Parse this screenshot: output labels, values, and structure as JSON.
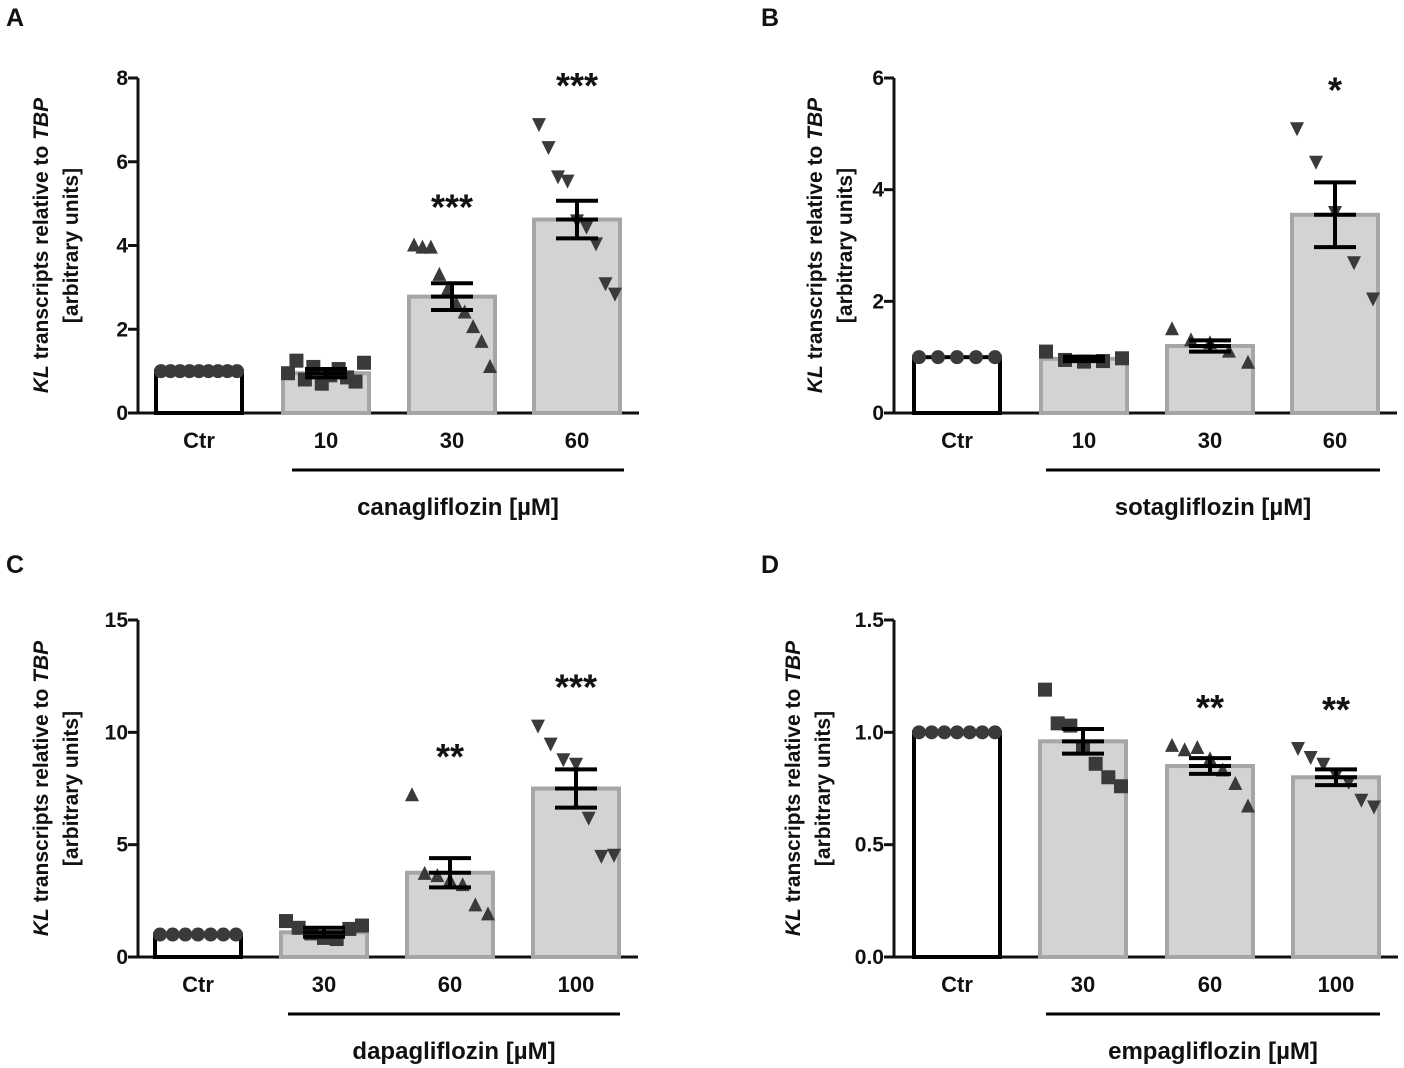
{
  "colors": {
    "bar_fill": "#d3d3d3",
    "bar_edge": "#a6a6a6",
    "control_fill": "#ffffff",
    "control_edge": "#000000",
    "points": "#3a3a3a",
    "axis": "#111111"
  },
  "chart_data": [
    {
      "panel": "A",
      "type": "bar",
      "ylabel_italic_a": "KL",
      "ylabel_mid": " transcripts relative to ",
      "ylabel_italic_b": "TBP",
      "ylabel_line2": "[arbitrary units]",
      "ylim": [
        0,
        8
      ],
      "yticks": [
        0,
        2,
        4,
        6,
        8
      ],
      "ytick_labels": [
        "0",
        "2",
        "4",
        "6",
        "8"
      ],
      "categories": [
        "Ctr",
        "10",
        "30",
        "60"
      ],
      "drug": "canagliflozin [µM]",
      "means": [
        1.0,
        0.95,
        2.78,
        4.62
      ],
      "sem": [
        0.0,
        0.1,
        0.32,
        0.45
      ],
      "markers": [
        "circle",
        "square",
        "triangle-up",
        "triangle-down"
      ],
      "points": [
        [
          1,
          1,
          1,
          1,
          1,
          1,
          1,
          1,
          1
        ],
        [
          0.95,
          1.25,
          0.8,
          1.1,
          0.7,
          0.9,
          1.05,
          0.85,
          0.75,
          1.2
        ],
        [
          4.0,
          3.95,
          3.95,
          3.3,
          2.95,
          2.6,
          2.4,
          2.05,
          1.7,
          1.1
        ],
        [
          6.9,
          6.35,
          5.65,
          5.55,
          4.6,
          4.45,
          4.05,
          3.1,
          2.85
        ]
      ],
      "significance": [
        "",
        "",
        "***",
        "***"
      ]
    },
    {
      "panel": "B",
      "type": "bar",
      "ylabel_italic_a": "KL",
      "ylabel_mid": " transcripts relative to ",
      "ylabel_italic_b": "TBP",
      "ylabel_line2": "[arbitrary units]",
      "ylim": [
        0,
        6
      ],
      "yticks": [
        0,
        2,
        4,
        6
      ],
      "ytick_labels": [
        "0",
        "2",
        "4",
        "6"
      ],
      "categories": [
        "Ctr",
        "10",
        "30",
        "60"
      ],
      "drug": "sotagliflozin [µM]",
      "means": [
        1.0,
        0.97,
        1.2,
        3.55
      ],
      "sem": [
        0.0,
        0.04,
        0.1,
        0.58
      ],
      "markers": [
        "circle",
        "square",
        "triangle-up",
        "triangle-down"
      ],
      "points": [
        [
          1,
          1,
          1,
          1,
          1
        ],
        [
          1.1,
          0.95,
          0.92,
          0.93,
          0.98
        ],
        [
          1.5,
          1.3,
          1.25,
          1.1,
          0.9
        ],
        [
          5.1,
          4.5,
          3.6,
          2.7,
          2.05
        ]
      ],
      "significance": [
        "",
        "",
        "",
        "*"
      ]
    },
    {
      "panel": "C",
      "type": "bar",
      "ylabel_italic_a": "KL",
      "ylabel_mid": " transcripts relative to ",
      "ylabel_italic_b": "TBP",
      "ylabel_line2": "[arbitrary units]",
      "ylim": [
        0,
        15
      ],
      "yticks": [
        0,
        5,
        10,
        15
      ],
      "ytick_labels": [
        "0",
        "5",
        "10",
        "15"
      ],
      "categories": [
        "Ctr",
        "30",
        "60",
        "100"
      ],
      "drug": "dapagliflozin [µM]",
      "means": [
        1.0,
        1.1,
        3.75,
        7.5
      ],
      "sem": [
        0.0,
        0.2,
        0.65,
        0.85
      ],
      "markers": [
        "circle",
        "square",
        "triangle-up",
        "triangle-down"
      ],
      "points": [
        [
          1,
          1,
          1,
          1,
          1,
          1,
          1
        ],
        [
          1.6,
          1.3,
          1.05,
          0.85,
          0.8,
          1.25,
          1.4
        ],
        [
          7.2,
          3.7,
          3.6,
          3.4,
          3.2,
          2.3,
          1.9
        ],
        [
          10.3,
          9.5,
          8.8,
          8.6,
          6.2,
          4.5,
          4.55
        ]
      ],
      "significance": [
        "",
        "",
        "**",
        "***"
      ]
    },
    {
      "panel": "D",
      "type": "bar",
      "ylabel_italic_a": "KL",
      "ylabel_mid": " transcripts relative to ",
      "ylabel_italic_b": "TBP",
      "ylabel_line2": "[arbitrary units]",
      "ylim": [
        0,
        1.5
      ],
      "yticks": [
        0,
        0.5,
        1.0,
        1.5
      ],
      "ytick_labels": [
        "0.0",
        "0.5",
        "1.0",
        "1.5"
      ],
      "categories": [
        "Ctr",
        "30",
        "60",
        "100"
      ],
      "drug": "empagliflozin [µM]",
      "means": [
        1.0,
        0.96,
        0.85,
        0.8
      ],
      "sem": [
        0.0,
        0.055,
        0.035,
        0.035
      ],
      "markers": [
        "circle",
        "square",
        "triangle-up",
        "triangle-down"
      ],
      "points": [
        [
          1,
          1,
          1,
          1,
          1,
          1,
          1
        ],
        [
          1.19,
          1.04,
          1.03,
          0.93,
          0.86,
          0.8,
          0.76
        ],
        [
          0.94,
          0.92,
          0.93,
          0.88,
          0.83,
          0.77,
          0.67
        ],
        [
          0.93,
          0.89,
          0.86,
          0.81,
          0.78,
          0.7,
          0.67
        ]
      ],
      "significance": [
        "",
        "",
        "**",
        "**"
      ]
    }
  ]
}
